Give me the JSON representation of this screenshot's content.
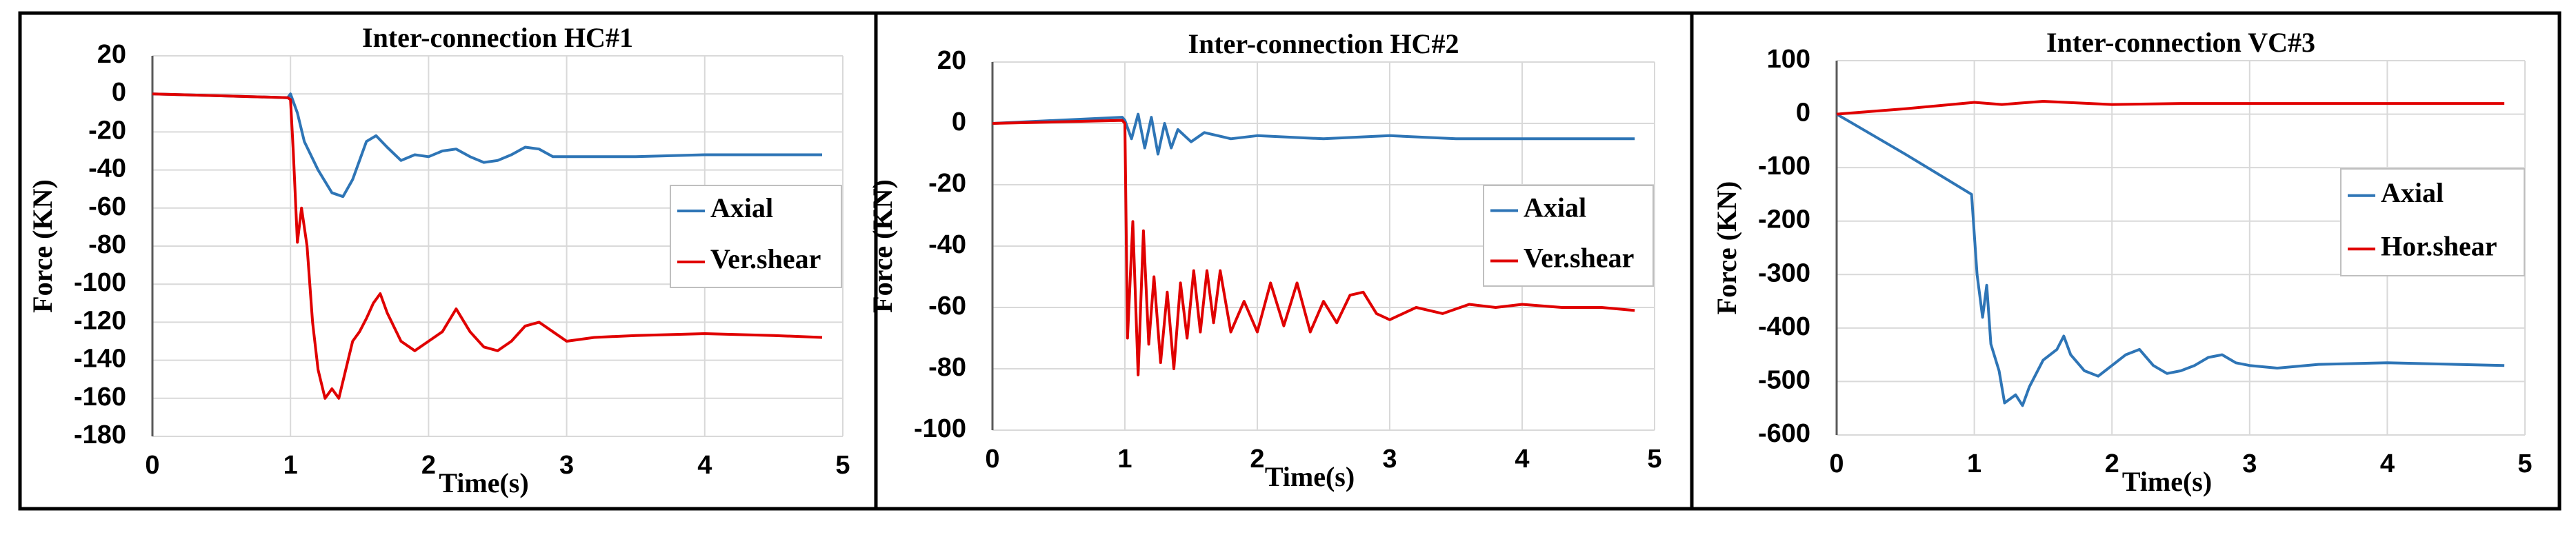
{
  "chart_data": [
    {
      "type": "line",
      "title": "Inter-connection HC#1",
      "xlabel": "Time(s)",
      "ylabel": "Force (KN)",
      "xlim": [
        0,
        5
      ],
      "xticks": [
        0,
        1,
        2,
        3,
        4,
        5
      ],
      "ylim": [
        -180,
        20
      ],
      "yticks": [
        20,
        0,
        -20,
        -40,
        -60,
        -80,
        -100,
        -120,
        -140,
        -160,
        -180
      ],
      "grid": true,
      "series": [
        {
          "name": "Axial",
          "color": "#2e75b6",
          "x": [
            0,
            0.5,
            0.98,
            1.0,
            1.05,
            1.1,
            1.2,
            1.3,
            1.38,
            1.45,
            1.55,
            1.62,
            1.7,
            1.8,
            1.9,
            2.0,
            2.1,
            2.2,
            2.3,
            2.4,
            2.5,
            2.6,
            2.7,
            2.8,
            2.9,
            3.0,
            3.5,
            4.0,
            4.5,
            4.85
          ],
          "values": [
            0,
            -1,
            -2,
            0,
            -10,
            -25,
            -40,
            -52,
            -54,
            -45,
            -25,
            -22,
            -28,
            -35,
            -32,
            -33,
            -30,
            -29,
            -33,
            -36,
            -35,
            -32,
            -28,
            -29,
            -33,
            -33,
            -33,
            -32,
            -32,
            -32
          ]
        },
        {
          "name": "Ver.shear",
          "color": "#e00000",
          "x": [
            0,
            0.98,
            1.0,
            1.02,
            1.05,
            1.08,
            1.12,
            1.16,
            1.2,
            1.25,
            1.3,
            1.35,
            1.4,
            1.45,
            1.5,
            1.55,
            1.6,
            1.65,
            1.7,
            1.8,
            1.9,
            2.0,
            2.1,
            2.2,
            2.3,
            2.4,
            2.5,
            2.6,
            2.7,
            2.8,
            2.9,
            3.0,
            3.2,
            3.5,
            4.0,
            4.5,
            4.85
          ],
          "values": [
            0,
            -2,
            -3,
            -30,
            -78,
            -60,
            -80,
            -120,
            -145,
            -160,
            -155,
            -160,
            -145,
            -130,
            -125,
            -118,
            -110,
            -105,
            -115,
            -130,
            -135,
            -130,
            -125,
            -113,
            -125,
            -133,
            -135,
            -130,
            -122,
            -120,
            -125,
            -130,
            -128,
            -127,
            -126,
            -127,
            -128
          ]
        }
      ]
    },
    {
      "type": "line",
      "title": "Inter-connection HC#2",
      "xlabel": "Time(s)",
      "ylabel": "Force (KN)",
      "xlim": [
        0,
        5
      ],
      "xticks": [
        0,
        1,
        2,
        3,
        4,
        5
      ],
      "ylim": [
        -100,
        20
      ],
      "yticks": [
        20,
        0,
        -20,
        -40,
        -60,
        -80,
        -100
      ],
      "grid": true,
      "series": [
        {
          "name": "Axial",
          "color": "#2e75b6",
          "x": [
            0,
            0.98,
            1.0,
            1.05,
            1.1,
            1.15,
            1.2,
            1.25,
            1.3,
            1.35,
            1.4,
            1.5,
            1.6,
            1.8,
            2.0,
            2.5,
            3.0,
            3.5,
            4.0,
            4.5,
            4.85
          ],
          "values": [
            0,
            2,
            1,
            -5,
            3,
            -8,
            2,
            -10,
            0,
            -8,
            -2,
            -6,
            -3,
            -5,
            -4,
            -5,
            -4,
            -5,
            -5,
            -5,
            -5
          ]
        },
        {
          "name": "Ver.shear",
          "color": "#e00000",
          "x": [
            0,
            0.98,
            1.0,
            1.02,
            1.06,
            1.1,
            1.14,
            1.18,
            1.22,
            1.27,
            1.32,
            1.37,
            1.42,
            1.47,
            1.52,
            1.57,
            1.62,
            1.67,
            1.72,
            1.8,
            1.9,
            2.0,
            2.1,
            2.2,
            2.3,
            2.4,
            2.5,
            2.6,
            2.7,
            2.8,
            2.9,
            3.0,
            3.2,
            3.4,
            3.6,
            3.8,
            4.0,
            4.3,
            4.6,
            4.85
          ],
          "values": [
            0,
            1,
            0,
            -70,
            -32,
            -82,
            -35,
            -72,
            -50,
            -78,
            -55,
            -80,
            -52,
            -70,
            -48,
            -68,
            -48,
            -65,
            -48,
            -68,
            -58,
            -68,
            -52,
            -66,
            -52,
            -68,
            -58,
            -65,
            -56,
            -55,
            -62,
            -64,
            -60,
            -62,
            -59,
            -60,
            -59,
            -60,
            -60,
            -61
          ]
        }
      ]
    },
    {
      "type": "line",
      "title": "Inter-connection VC#3",
      "xlabel": "Time(s)",
      "ylabel": "Force (KN)",
      "xlim": [
        0,
        5
      ],
      "xticks": [
        0,
        1,
        2,
        3,
        4,
        5
      ],
      "ylim": [
        -600,
        100
      ],
      "yticks": [
        100,
        0,
        -100,
        -200,
        -300,
        -400,
        -500,
        -600
      ],
      "grid": true,
      "series": [
        {
          "name": "Axial",
          "color": "#2e75b6",
          "x": [
            0,
            0.1,
            0.5,
            0.98,
            1.02,
            1.06,
            1.09,
            1.12,
            1.18,
            1.22,
            1.3,
            1.35,
            1.4,
            1.5,
            1.6,
            1.65,
            1.7,
            1.8,
            1.9,
            2.0,
            2.1,
            2.2,
            2.3,
            2.4,
            2.5,
            2.6,
            2.7,
            2.8,
            2.9,
            3.0,
            3.2,
            3.5,
            4.0,
            4.5,
            4.85
          ],
          "values": [
            0,
            -15,
            -75,
            -150,
            -300,
            -380,
            -320,
            -430,
            -480,
            -540,
            -525,
            -545,
            -510,
            -460,
            -440,
            -415,
            -450,
            -480,
            -490,
            -470,
            -450,
            -440,
            -470,
            -485,
            -480,
            -470,
            -455,
            -450,
            -465,
            -470,
            -475,
            -468,
            -465,
            -468,
            -470
          ]
        },
        {
          "name": "Hor.shear",
          "color": "#e00000",
          "x": [
            0,
            0.5,
            1.0,
            1.2,
            1.5,
            2.0,
            2.5,
            3.0,
            4.0,
            4.85
          ],
          "values": [
            0,
            10,
            22,
            18,
            24,
            18,
            20,
            20,
            20,
            20
          ]
        }
      ]
    }
  ]
}
